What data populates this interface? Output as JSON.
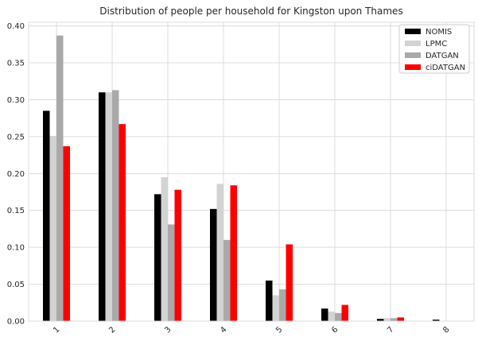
{
  "chart_data": {
    "type": "bar",
    "title": "Distribution of people per household for Kingston upon Thames",
    "xlabel": "",
    "ylabel": "",
    "categories": [
      "1",
      "2",
      "3",
      "4",
      "5",
      "6",
      "7",
      "8"
    ],
    "ylim": [
      0,
      0.405
    ],
    "yticks": [
      "0.00",
      "0.05",
      "0.10",
      "0.15",
      "0.20",
      "0.25",
      "0.30",
      "0.35",
      "0.40"
    ],
    "grid": true,
    "legend_position": "top-right",
    "series": [
      {
        "name": "NOMIS",
        "color": "#000000",
        "values": [
          0.285,
          0.31,
          0.172,
          0.152,
          0.055,
          0.017,
          0.003,
          0.002
        ]
      },
      {
        "name": "LPMC",
        "color": "#d3d3d3",
        "values": [
          0.251,
          0.31,
          0.195,
          0.186,
          0.035,
          0.013,
          0.004,
          0.0
        ]
      },
      {
        "name": "DATGAN",
        "color": "#a9a9a9",
        "values": [
          0.387,
          0.313,
          0.131,
          0.11,
          0.043,
          0.011,
          0.004,
          0.0
        ]
      },
      {
        "name": "ciDATGAN",
        "color": "#ff0000",
        "values": [
          0.237,
          0.267,
          0.178,
          0.184,
          0.104,
          0.022,
          0.005,
          0.0
        ]
      }
    ]
  }
}
